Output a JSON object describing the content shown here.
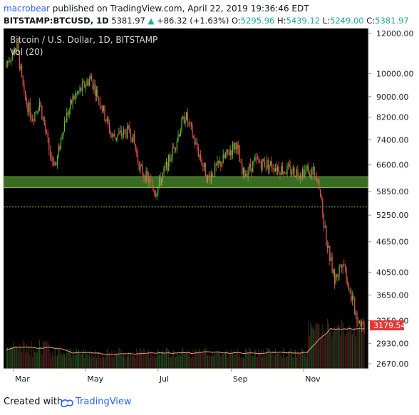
{
  "header": {
    "author": "macrobear",
    "published_text": "published on TradingView.com, April 22, 2019 19:36:46 EDT",
    "symbol": "BITSTAMP:BTCUSD, 1D",
    "last": "5381.97",
    "change_arrow": "▲",
    "change": "+86.32 (+1.63%)",
    "o_label": "O:",
    "o_value": "5295.96",
    "h_label": "H:",
    "h_value": "5439.12",
    "l_label": "L:",
    "l_value": "5249.00",
    "c_label": "C:",
    "c_value": "5381.97"
  },
  "chart": {
    "title": "Bitcoin / U.S. Dollar, 1D, BITSTAMP",
    "volume_label": "Vol (20)",
    "price_badge": "3179.54",
    "colors": {
      "background": "#000000",
      "up": "#5ec43a",
      "down": "#ef5350",
      "support_zone": "#3a6b23",
      "volume_ma": "#f0a070",
      "badge": "#e53935"
    }
  },
  "chart_data": {
    "type": "candlestick",
    "title": "Bitcoin / U.S. Dollar, 1D, BITSTAMP",
    "y_scale": "log",
    "y_ticks": [
      "12000.00",
      "10000.00",
      "9000.00",
      "8200.00",
      "7400.00",
      "6600.00",
      "5850.00",
      "5250.00",
      "4650.00",
      "4050.00",
      "3650.00",
      "3250.00",
      "2930.00",
      "2670.00"
    ],
    "x_ticks": [
      "Mar",
      "May",
      "Jul",
      "Sep",
      "Nov"
    ],
    "support_zone": [
      5950,
      6250
    ],
    "dotted_level": 5450,
    "last_price": 3179.54,
    "price_path": [
      {
        "date": "2018-02-23",
        "price": 10500
      },
      {
        "date": "2018-03-04",
        "price": 11300
      },
      {
        "date": "2018-03-10",
        "price": 9000
      },
      {
        "date": "2018-03-17",
        "price": 8200
      },
      {
        "date": "2018-03-23",
        "price": 8800
      },
      {
        "date": "2018-04-01",
        "price": 6900
      },
      {
        "date": "2018-04-06",
        "price": 6600
      },
      {
        "date": "2018-04-12",
        "price": 7900
      },
      {
        "date": "2018-04-20",
        "price": 8900
      },
      {
        "date": "2018-04-27",
        "price": 9300
      },
      {
        "date": "2018-05-05",
        "price": 9800
      },
      {
        "date": "2018-05-14",
        "price": 8700
      },
      {
        "date": "2018-05-23",
        "price": 7500
      },
      {
        "date": "2018-06-01",
        "price": 7600
      },
      {
        "date": "2018-06-08",
        "price": 7700
      },
      {
        "date": "2018-06-16",
        "price": 6500
      },
      {
        "date": "2018-06-29",
        "price": 5850
      },
      {
        "date": "2018-07-10",
        "price": 6700
      },
      {
        "date": "2018-07-24",
        "price": 8300
      },
      {
        "date": "2018-08-04",
        "price": 7000
      },
      {
        "date": "2018-08-12",
        "price": 6200
      },
      {
        "date": "2018-08-26",
        "price": 6800
      },
      {
        "date": "2018-09-05",
        "price": 7300
      },
      {
        "date": "2018-09-10",
        "price": 6300
      },
      {
        "date": "2018-09-22",
        "price": 6700
      },
      {
        "date": "2018-10-05",
        "price": 6600
      },
      {
        "date": "2018-10-15",
        "price": 6450
      },
      {
        "date": "2018-10-28",
        "price": 6400
      },
      {
        "date": "2018-11-05",
        "price": 6450
      },
      {
        "date": "2018-11-13",
        "price": 6300
      },
      {
        "date": "2018-11-16",
        "price": 5500
      },
      {
        "date": "2018-11-20",
        "price": 4700
      },
      {
        "date": "2018-11-27",
        "price": 3900
      },
      {
        "date": "2018-12-04",
        "price": 4300
      },
      {
        "date": "2018-12-10",
        "price": 3700
      },
      {
        "date": "2018-12-16",
        "price": 3300
      },
      {
        "date": "2018-12-22",
        "price": 3179.54
      }
    ]
  },
  "footer": {
    "created_with": "Created with",
    "brand": "TradingView"
  }
}
